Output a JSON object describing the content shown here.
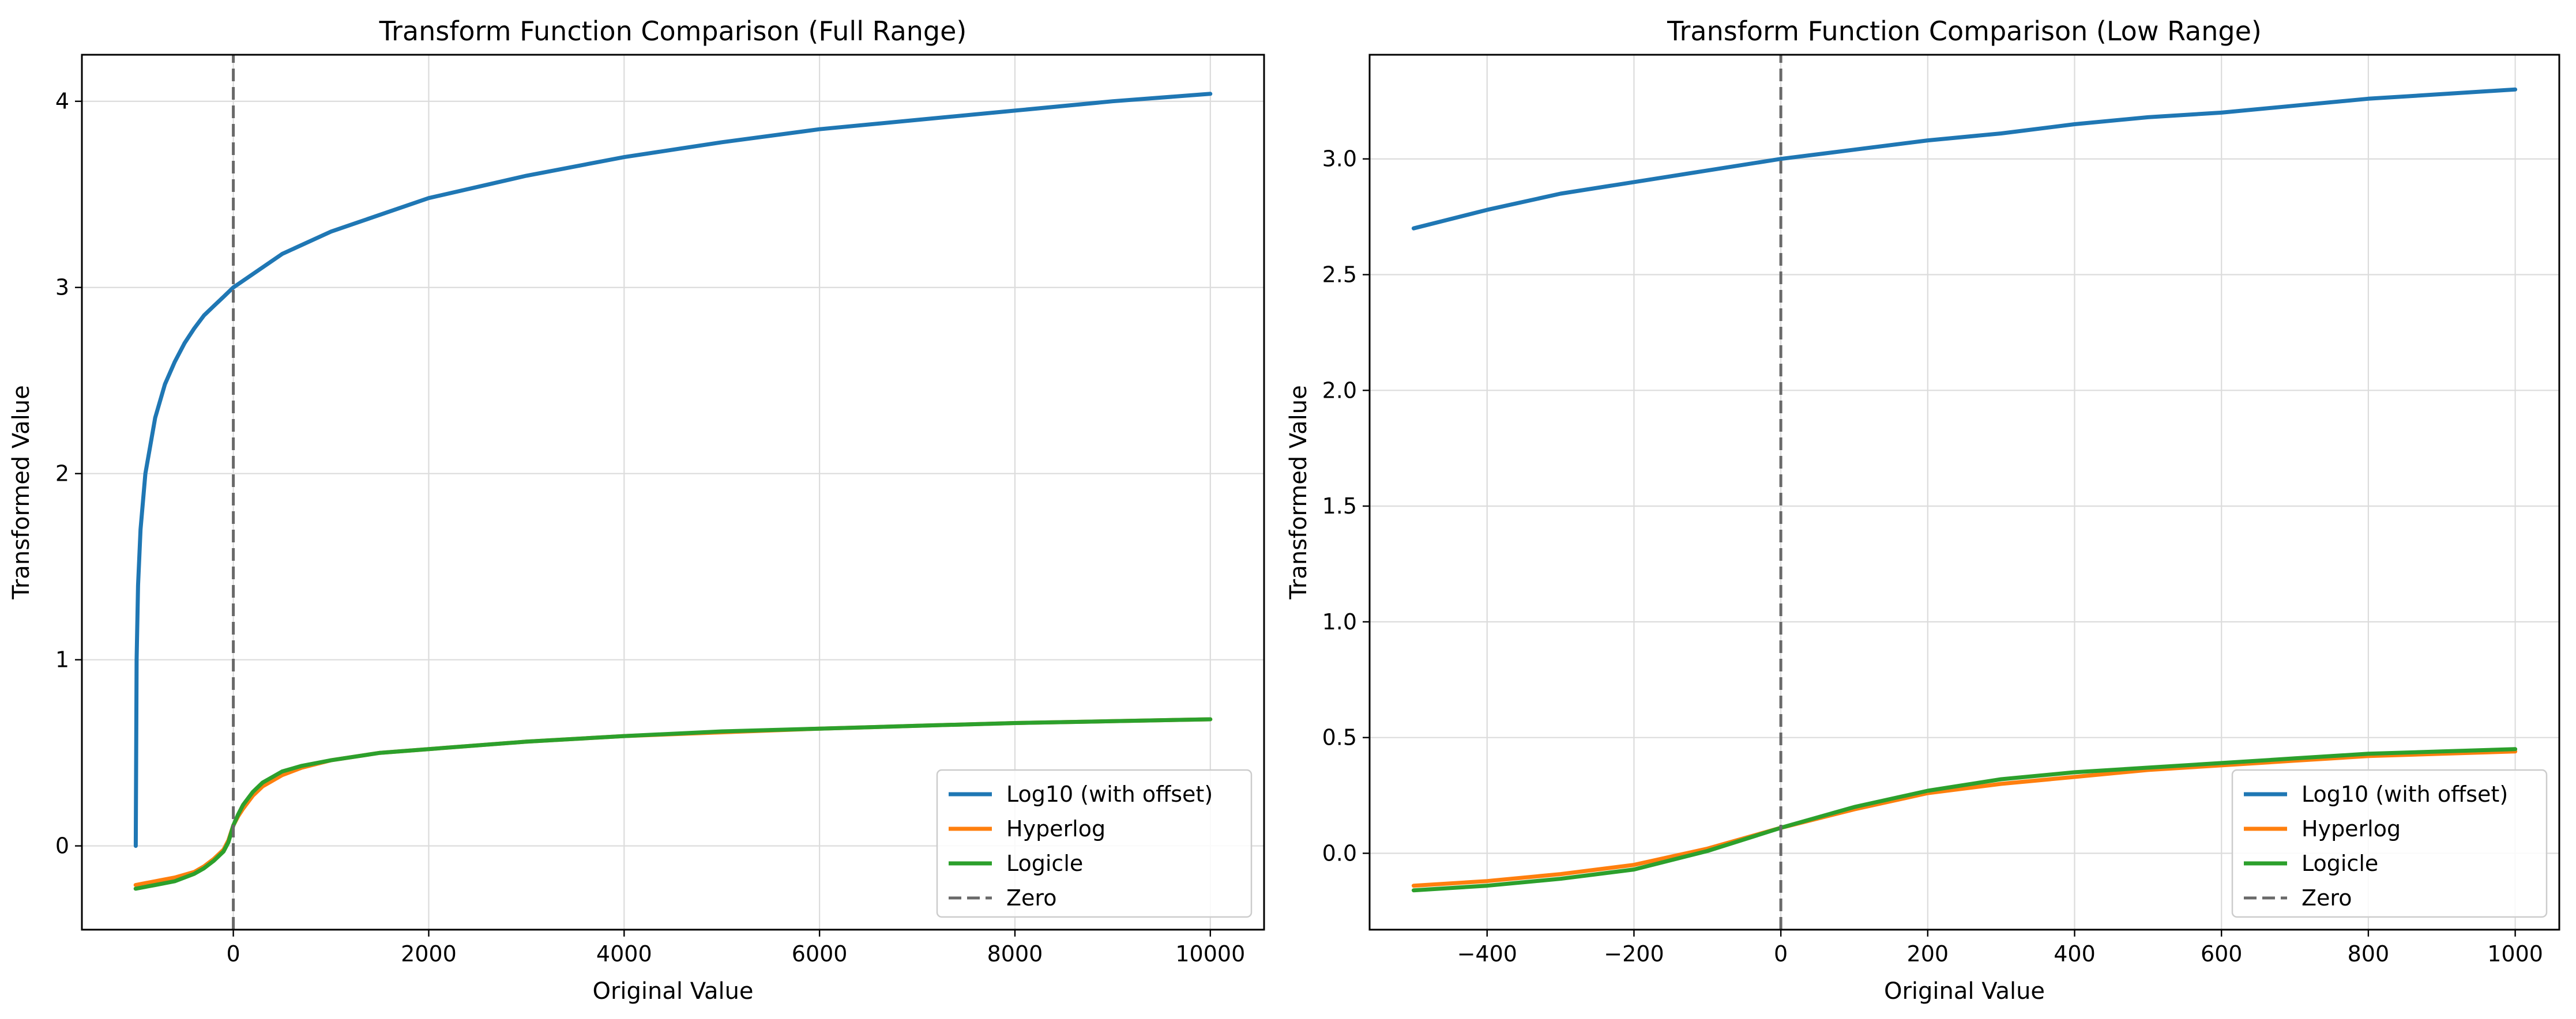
{
  "chart_data": [
    {
      "type": "line",
      "title": "Transform Function Comparison (Full Range)",
      "xlabel": "Original Value",
      "ylabel": "Transformed Value",
      "xlim": [
        -1550,
        10550
      ],
      "ylim": [
        -0.45,
        4.25
      ],
      "xticks": [
        0,
        2000,
        4000,
        6000,
        8000,
        10000
      ],
      "xtick_labels": [
        "0",
        "2000",
        "4000",
        "6000",
        "8000",
        "10000"
      ],
      "yticks": [
        0,
        1,
        2,
        3,
        4
      ],
      "ytick_labels": [
        "0",
        "1",
        "2",
        "3",
        "4"
      ],
      "grid": true,
      "legend_position": "lower-right",
      "vline": {
        "x": 0,
        "name": "Zero"
      },
      "series": [
        {
          "name": "Log10 (with offset)",
          "color": "#1f77b4",
          "x": [
            -999,
            -990,
            -975,
            -950,
            -900,
            -800,
            -700,
            -600,
            -500,
            -400,
            -300,
            -200,
            -100,
            0,
            500,
            1000,
            2000,
            3000,
            4000,
            5000,
            6000,
            7000,
            8000,
            9000,
            10000
          ],
          "y": [
            0.0,
            1.0,
            1.4,
            1.7,
            2.0,
            2.3,
            2.48,
            2.6,
            2.7,
            2.78,
            2.85,
            2.9,
            2.95,
            3.0,
            3.18,
            3.3,
            3.48,
            3.6,
            3.7,
            3.78,
            3.85,
            3.9,
            3.95,
            4.0,
            4.04
          ]
        },
        {
          "name": "Hyperlog",
          "color": "#ff7f0e",
          "x": [
            -1000,
            -800,
            -600,
            -400,
            -300,
            -200,
            -100,
            -50,
            0,
            50,
            100,
            200,
            300,
            400,
            500,
            700,
            1000,
            1500,
            2000,
            3000,
            4000,
            5000,
            6000,
            7000,
            8000,
            9000,
            10000
          ],
          "y": [
            -0.21,
            -0.19,
            -0.17,
            -0.14,
            -0.11,
            -0.07,
            -0.02,
            0.03,
            0.11,
            0.16,
            0.2,
            0.27,
            0.32,
            0.35,
            0.38,
            0.42,
            0.46,
            0.5,
            0.52,
            0.56,
            0.59,
            0.61,
            0.63,
            0.645,
            0.66,
            0.67,
            0.68
          ]
        },
        {
          "name": "Logicle",
          "color": "#2ca02c",
          "x": [
            -1000,
            -800,
            -600,
            -400,
            -300,
            -200,
            -100,
            -50,
            0,
            50,
            100,
            200,
            300,
            400,
            500,
            700,
            1000,
            1500,
            2000,
            3000,
            4000,
            5000,
            6000,
            7000,
            8000,
            9000,
            10000
          ],
          "y": [
            -0.23,
            -0.21,
            -0.19,
            -0.15,
            -0.12,
            -0.08,
            -0.03,
            0.02,
            0.11,
            0.17,
            0.22,
            0.29,
            0.34,
            0.37,
            0.4,
            0.43,
            0.46,
            0.5,
            0.52,
            0.56,
            0.59,
            0.615,
            0.63,
            0.645,
            0.66,
            0.67,
            0.68
          ]
        },
        {
          "name": "Zero",
          "color": "#696969",
          "dashed": true,
          "x": [
            0,
            0
          ],
          "y": [
            -0.45,
            4.25
          ]
        }
      ]
    },
    {
      "type": "line",
      "title": "Transform Function Comparison (Low Range)",
      "xlabel": "Original Value",
      "ylabel": "Transformed Value",
      "xlim": [
        -560,
        1060
      ],
      "ylim": [
        -0.33,
        3.45
      ],
      "xticks": [
        -400,
        -200,
        0,
        200,
        400,
        600,
        800,
        1000
      ],
      "xtick_labels": [
        "−400",
        "−200",
        "0",
        "200",
        "400",
        "600",
        "800",
        "1000"
      ],
      "yticks": [
        0,
        0.5,
        1,
        1.5,
        2,
        2.5,
        3
      ],
      "ytick_labels": [
        "0.0",
        "0.5",
        "1.0",
        "1.5",
        "2.0",
        "2.5",
        "3.0"
      ],
      "grid": true,
      "legend_position": "lower-right",
      "vline": {
        "x": 0,
        "name": "Zero"
      },
      "series": [
        {
          "name": "Log10 (with offset)",
          "color": "#1f77b4",
          "x": [
            -500,
            -400,
            -300,
            -200,
            -100,
            0,
            100,
            200,
            300,
            400,
            500,
            600,
            700,
            800,
            900,
            1000
          ],
          "y": [
            2.7,
            2.78,
            2.85,
            2.9,
            2.95,
            3.0,
            3.04,
            3.08,
            3.11,
            3.15,
            3.18,
            3.2,
            3.23,
            3.26,
            3.28,
            3.3
          ]
        },
        {
          "name": "Hyperlog",
          "color": "#ff7f0e",
          "x": [
            -500,
            -400,
            -300,
            -200,
            -100,
            0,
            100,
            200,
            300,
            400,
            500,
            600,
            700,
            800,
            900,
            1000
          ],
          "y": [
            -0.14,
            -0.12,
            -0.09,
            -0.05,
            0.02,
            0.11,
            0.19,
            0.26,
            0.3,
            0.33,
            0.36,
            0.38,
            0.4,
            0.42,
            0.43,
            0.44
          ]
        },
        {
          "name": "Logicle",
          "color": "#2ca02c",
          "x": [
            -500,
            -400,
            -300,
            -200,
            -100,
            0,
            100,
            200,
            300,
            400,
            500,
            600,
            700,
            800,
            900,
            1000
          ],
          "y": [
            -0.16,
            -0.14,
            -0.11,
            -0.07,
            0.01,
            0.11,
            0.2,
            0.27,
            0.32,
            0.35,
            0.37,
            0.39,
            0.41,
            0.43,
            0.44,
            0.45
          ]
        },
        {
          "name": "Zero",
          "color": "#696969",
          "dashed": true,
          "x": [
            0,
            0
          ],
          "y": [
            -0.33,
            3.45
          ]
        }
      ]
    }
  ]
}
